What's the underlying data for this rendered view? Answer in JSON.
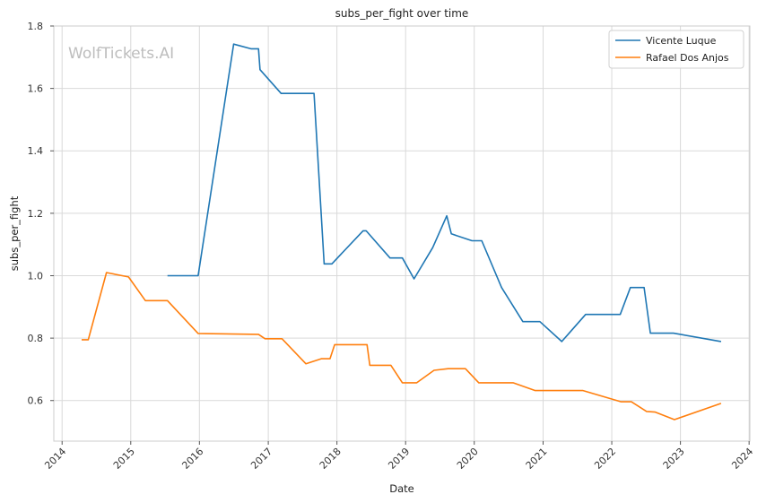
{
  "chart_data": {
    "type": "line",
    "title": "subs_per_fight over time",
    "xlabel": "Date",
    "ylabel": "subs_per_fight",
    "watermark": "WolfTickets.AI",
    "x_ticks": [
      "2014",
      "2015",
      "2016",
      "2017",
      "2018",
      "2019",
      "2020",
      "2021",
      "2022",
      "2023",
      "2024"
    ],
    "y_ticks": [
      "0.6",
      "0.8",
      "1.0",
      "1.2",
      "1.4",
      "1.6",
      "1.8"
    ],
    "xlim": [
      "2013-11-18",
      "2024-01-05"
    ],
    "ylim": [
      0.47,
      1.8
    ],
    "grid": true,
    "legend_position": "top-right",
    "series": [
      {
        "name": "Vicente Luque",
        "color": "#1f77b4",
        "points": [
          [
            "2015-07-15",
            1.0
          ],
          [
            "2015-12-25",
            1.0
          ],
          [
            "2016-07-01",
            1.742
          ],
          [
            "2016-10-01",
            1.727
          ],
          [
            "2016-11-10",
            1.727
          ],
          [
            "2016-11-18",
            1.66
          ],
          [
            "2017-03-10",
            1.584
          ],
          [
            "2017-09-01",
            1.584
          ],
          [
            "2017-10-25",
            1.038
          ],
          [
            "2017-12-05",
            1.038
          ],
          [
            "2018-05-20",
            1.144
          ],
          [
            "2018-06-05",
            1.144
          ],
          [
            "2018-10-10",
            1.057
          ],
          [
            "2018-12-15",
            1.057
          ],
          [
            "2019-02-15",
            0.99
          ],
          [
            "2019-05-25",
            1.09
          ],
          [
            "2019-08-08",
            1.192
          ],
          [
            "2019-09-01",
            1.134
          ],
          [
            "2019-12-20",
            1.112
          ],
          [
            "2020-02-10",
            1.112
          ],
          [
            "2020-05-25",
            0.962
          ],
          [
            "2020-09-15",
            0.853
          ],
          [
            "2020-12-15",
            0.853
          ],
          [
            "2021-04-10",
            0.789
          ],
          [
            "2021-08-15",
            0.876
          ],
          [
            "2022-02-15",
            0.876
          ],
          [
            "2022-04-10",
            0.962
          ],
          [
            "2022-06-22",
            0.962
          ],
          [
            "2022-07-25",
            0.816
          ],
          [
            "2022-11-25",
            0.816
          ],
          [
            "2023-08-05",
            0.789
          ]
        ]
      },
      {
        "name": "Rafael Dos Anjos",
        "color": "#ff7f0e",
        "points": [
          [
            "2014-04-15",
            0.795
          ],
          [
            "2014-05-20",
            0.795
          ],
          [
            "2014-08-25",
            1.01
          ],
          [
            "2014-12-20",
            0.996
          ],
          [
            "2015-03-20",
            0.92
          ],
          [
            "2015-07-15",
            0.92
          ],
          [
            "2015-12-25",
            0.815
          ],
          [
            "2016-11-10",
            0.812
          ],
          [
            "2016-12-15",
            0.798
          ],
          [
            "2017-03-15",
            0.798
          ],
          [
            "2017-07-20",
            0.718
          ],
          [
            "2017-10-10",
            0.734
          ],
          [
            "2017-11-25",
            0.734
          ],
          [
            "2017-12-20",
            0.779
          ],
          [
            "2018-06-10",
            0.779
          ],
          [
            "2018-06-25",
            0.713
          ],
          [
            "2018-10-15",
            0.713
          ],
          [
            "2018-12-15",
            0.657
          ],
          [
            "2019-03-01",
            0.657
          ],
          [
            "2019-06-01",
            0.697
          ],
          [
            "2019-08-15",
            0.702
          ],
          [
            "2019-11-15",
            0.702
          ],
          [
            "2020-01-25",
            0.657
          ],
          [
            "2020-07-25",
            0.657
          ],
          [
            "2020-11-20",
            0.632
          ],
          [
            "2021-08-01",
            0.632
          ],
          [
            "2022-02-20",
            0.596
          ],
          [
            "2022-04-15",
            0.596
          ],
          [
            "2022-07-05",
            0.565
          ],
          [
            "2022-08-20",
            0.563
          ],
          [
            "2022-11-30",
            0.539
          ],
          [
            "2023-08-05",
            0.591
          ]
        ]
      }
    ]
  }
}
